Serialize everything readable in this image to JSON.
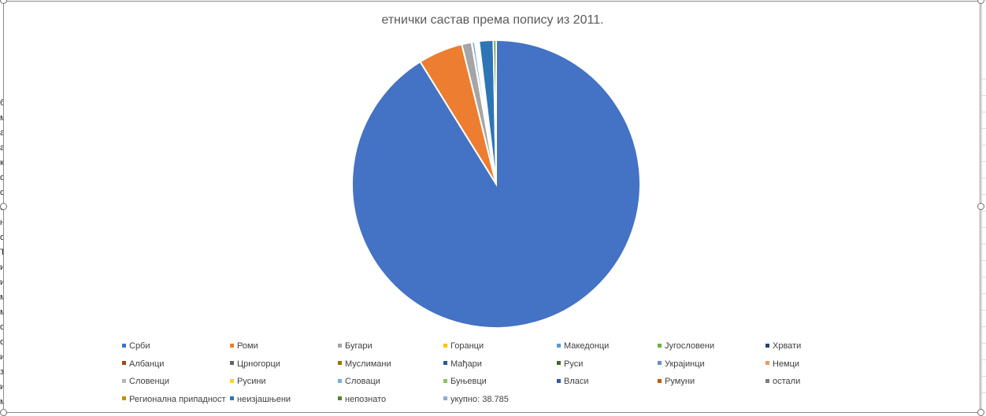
{
  "sheet": {
    "left_edge_glyphs": [
      "б",
      "м",
      "а",
      "а",
      "к",
      "о",
      "о",
      "о",
      "н",
      "о",
      "Ђ",
      "и",
      "и",
      "м",
      "м",
      "о",
      "о",
      "и",
      "з",
      "и",
      "м"
    ]
  },
  "chart_data": {
    "type": "pie",
    "title": "етнички састав према попису из 2011.",
    "legend_position": "bottom",
    "slices": [
      {
        "name": "Срби",
        "value": 91.2,
        "color": "#4472C4"
      },
      {
        "name": "Роми",
        "value": 5.0,
        "color": "#ED7D31"
      },
      {
        "name": "Бугари",
        "value": 1.1,
        "color": "#A5A5A5"
      },
      {
        "name": "Горанци",
        "value": 0.05,
        "color": "#FFC000"
      },
      {
        "name": "Македонци",
        "value": 0.3,
        "color": "#5B9BD5"
      },
      {
        "name": "Југословени",
        "value": 0.05,
        "color": "#70AD47"
      },
      {
        "name": "Хрвати",
        "value": 0.05,
        "color": "#264478"
      },
      {
        "name": "Албанци",
        "value": 0.02,
        "color": "#9E480E"
      },
      {
        "name": "Црногорци",
        "value": 0.1,
        "color": "#636363"
      },
      {
        "name": "Муслимани",
        "value": 0.03,
        "color": "#997300"
      },
      {
        "name": "Мађари",
        "value": 0.03,
        "color": "#255E91"
      },
      {
        "name": "Руси",
        "value": 0.02,
        "color": "#43682B"
      },
      {
        "name": "Украјинци",
        "value": 0.01,
        "color": "#698ED0"
      },
      {
        "name": "Немци",
        "value": 0.01,
        "color": "#F1975A"
      },
      {
        "name": "Словенци",
        "value": 0.02,
        "color": "#B7B7B7"
      },
      {
        "name": "Русини",
        "value": 0.01,
        "color": "#FFCD33"
      },
      {
        "name": "Словаци",
        "value": 0.02,
        "color": "#7CAFDD"
      },
      {
        "name": "Буњевци",
        "value": 0.01,
        "color": "#8CC168"
      },
      {
        "name": "Власи",
        "value": 0.02,
        "color": "#335AA1"
      },
      {
        "name": "Румуни",
        "value": 0.02,
        "color": "#C55A11"
      },
      {
        "name": "остали",
        "value": 0.05,
        "color": "#7B7B7B"
      },
      {
        "name": "Регионална припадност",
        "value": 0.02,
        "color": "#BF9000"
      },
      {
        "name": "неизјашњени",
        "value": 1.6,
        "color": "#2E75B6"
      },
      {
        "name": "непознато",
        "value": 0.3,
        "color": "#548235"
      },
      {
        "name": "укупно: 38.785",
        "value": 0.0,
        "color": "#8FAADC"
      }
    ]
  }
}
